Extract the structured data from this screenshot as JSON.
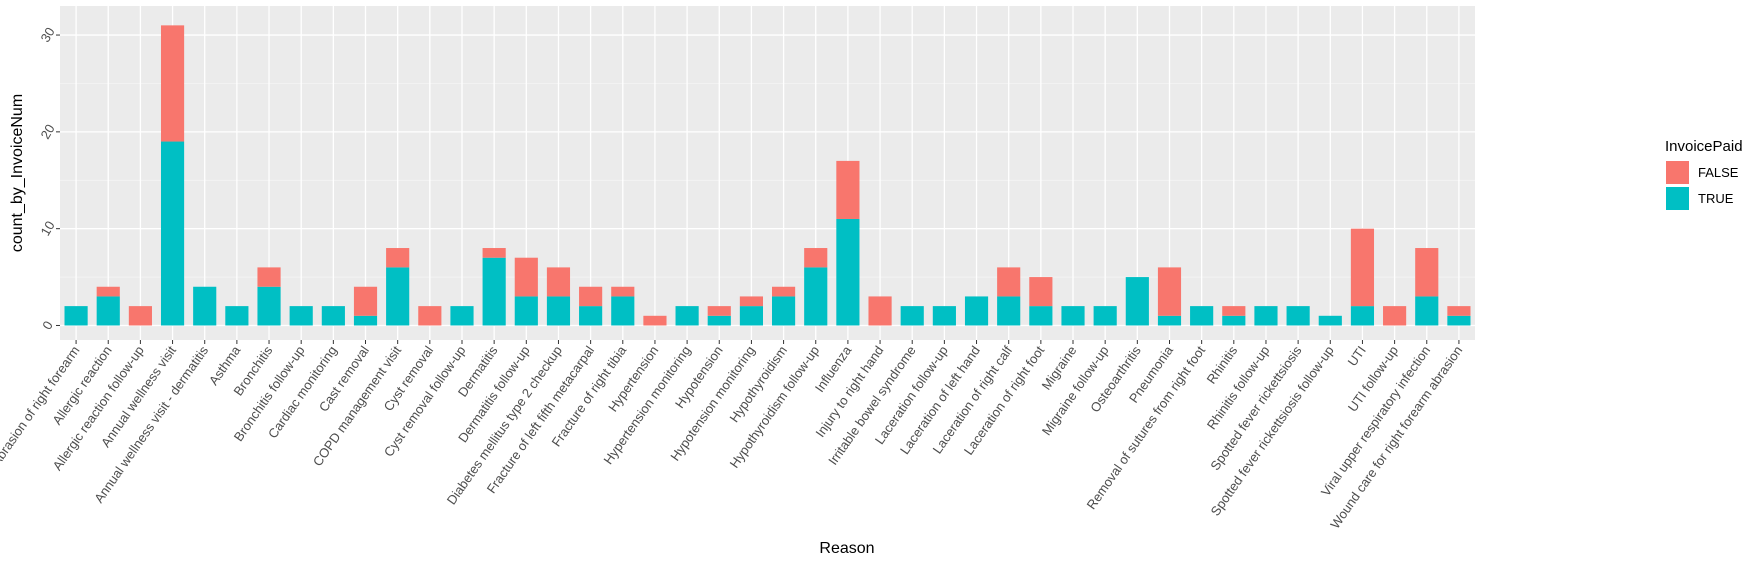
{
  "chart_data": {
    "type": "bar",
    "stacked": true,
    "xlabel": "Reason",
    "ylabel": "count_by_InvoiceNum",
    "ylim": [
      -1.5,
      33
    ],
    "yticks": [
      0,
      10,
      20,
      30
    ],
    "grid": true,
    "legend": {
      "title": "InvoicePaid",
      "position": "right"
    },
    "categories": [
      "Abrasion of right forearm",
      "Allergic reaction",
      "Allergic reaction follow-up",
      "Annual wellness visit",
      "Annual wellness visit - dermatitis",
      "Asthma",
      "Bronchitis",
      "Bronchitis follow-up",
      "Cardiac monitoring",
      "Cast removal",
      "COPD management visit",
      "Cyst removal",
      "Cyst removal follow-up",
      "Dermatitis",
      "Dermatitis follow-up",
      "Diabetes mellitus type 2 checkup",
      "Fracture of left fifth metacarpal",
      "Fracture of right tibia",
      "Hypertension",
      "Hypertension monitoring",
      "Hypotension",
      "Hypotension monitoring",
      "Hypothyroidism",
      "Hypothyroidism follow-up",
      "Influenza",
      "Injury to right hand",
      "Irritable bowel syndrome",
      "Laceration follow-up",
      "Laceration of left hand",
      "Laceration of right calf",
      "Laceration of right foot",
      "Migraine",
      "Migraine follow-up",
      "Osteoarthritis",
      "Pneumonia",
      "Removal of sutures from right foot",
      "Rhinitis",
      "Rhinitis follow-up",
      "Spotted fever rickettsiosis",
      "Spotted fever rickettsiosis follow-up",
      "UTI",
      "UTI follow-up",
      "Viral upper respiratory infection",
      "Wound care for right forearm abrasion"
    ],
    "series": [
      {
        "name": "FALSE",
        "color": "#F8766D",
        "values": [
          0,
          1,
          2,
          12,
          0,
          0,
          2,
          0,
          0,
          3,
          2,
          2,
          0,
          1,
          4,
          3,
          2,
          1,
          1,
          0,
          1,
          1,
          1,
          2,
          6,
          3,
          0,
          0,
          0,
          3,
          3,
          0,
          0,
          0,
          5,
          0,
          1,
          0,
          0,
          0,
          8,
          2,
          5,
          1
        ]
      },
      {
        "name": "TRUE",
        "color": "#00BFC4",
        "values": [
          2,
          3,
          0,
          19,
          4,
          2,
          4,
          2,
          2,
          1,
          6,
          0,
          2,
          7,
          3,
          3,
          2,
          3,
          0,
          2,
          1,
          2,
          3,
          6,
          11,
          0,
          2,
          2,
          3,
          3,
          2,
          2,
          2,
          5,
          1,
          2,
          1,
          2,
          2,
          1,
          2,
          0,
          3,
          1
        ]
      }
    ]
  }
}
